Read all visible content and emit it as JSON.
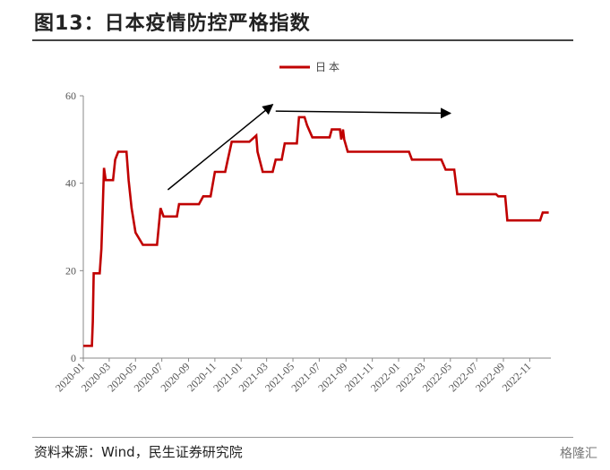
{
  "title": "图13：日本疫情防控严格指数",
  "source": "资料来源：Wind，民生证券研究院",
  "watermark": "格隆汇",
  "chart_data": {
    "type": "line",
    "series": [
      {
        "name": "日本",
        "color": "#c00000",
        "points": [
          [
            "2020-01-01",
            2.8
          ],
          [
            "2020-01-21",
            2.8
          ],
          [
            "2020-01-23",
            8.3
          ],
          [
            "2020-01-25",
            19.4
          ],
          [
            "2020-02-08",
            19.4
          ],
          [
            "2020-02-12",
            25.0
          ],
          [
            "2020-02-15",
            34.3
          ],
          [
            "2020-02-18",
            43.5
          ],
          [
            "2020-02-22",
            40.7
          ],
          [
            "2020-03-10",
            40.7
          ],
          [
            "2020-03-15",
            45.4
          ],
          [
            "2020-03-22",
            47.2
          ],
          [
            "2020-04-10",
            47.2
          ],
          [
            "2020-04-15",
            40.7
          ],
          [
            "2020-04-22",
            34.3
          ],
          [
            "2020-05-01",
            28.7
          ],
          [
            "2020-05-18",
            25.9
          ],
          [
            "2020-06-20",
            25.9
          ],
          [
            "2020-06-28",
            34.3
          ],
          [
            "2020-07-05",
            32.4
          ],
          [
            "2020-08-05",
            32.4
          ],
          [
            "2020-08-10",
            35.2
          ],
          [
            "2020-09-25",
            35.2
          ],
          [
            "2020-10-05",
            37.0
          ],
          [
            "2020-10-22",
            37.0
          ],
          [
            "2020-11-01",
            42.6
          ],
          [
            "2020-11-25",
            42.6
          ],
          [
            "2020-12-01",
            45.4
          ],
          [
            "2020-12-10",
            49.5
          ],
          [
            "2021-01-20",
            49.5
          ],
          [
            "2021-02-05",
            50.9
          ],
          [
            "2021-02-08",
            47.2
          ],
          [
            "2021-02-20",
            42.6
          ],
          [
            "2021-03-15",
            42.6
          ],
          [
            "2021-03-22",
            45.4
          ],
          [
            "2021-04-05",
            45.4
          ],
          [
            "2021-04-12",
            49.1
          ],
          [
            "2021-05-10",
            49.1
          ],
          [
            "2021-05-15",
            55.1
          ],
          [
            "2021-05-28",
            55.1
          ],
          [
            "2021-06-03",
            53.2
          ],
          [
            "2021-06-15",
            50.5
          ],
          [
            "2021-07-25",
            50.5
          ],
          [
            "2021-07-30",
            52.3
          ],
          [
            "2021-08-18",
            52.3
          ],
          [
            "2021-08-21",
            50.0
          ],
          [
            "2021-08-25",
            52.3
          ],
          [
            "2021-08-28",
            50.0
          ],
          [
            "2021-09-05",
            47.2
          ],
          [
            "2022-01-25",
            47.2
          ],
          [
            "2022-02-01",
            45.4
          ],
          [
            "2022-04-10",
            45.4
          ],
          [
            "2022-04-20",
            43.1
          ],
          [
            "2022-05-10",
            43.1
          ],
          [
            "2022-05-17",
            37.5
          ],
          [
            "2022-08-15",
            37.5
          ],
          [
            "2022-08-20",
            37.0
          ],
          [
            "2022-09-05",
            37.0
          ],
          [
            "2022-09-10",
            31.5
          ],
          [
            "2022-11-25",
            31.5
          ],
          [
            "2022-12-01",
            33.3
          ],
          [
            "2022-12-15",
            33.3
          ]
        ]
      }
    ],
    "ylim": [
      0,
      60
    ],
    "yticks": [
      0,
      20,
      40,
      60
    ],
    "xticks": [
      "2020-01",
      "2020-03",
      "2020-05",
      "2020-07",
      "2020-09",
      "2020-11",
      "2021-01",
      "2021-03",
      "2021-05",
      "2021-07",
      "2021-09",
      "2021-11",
      "2022-01",
      "2022-03",
      "2022-05",
      "2022-07",
      "2022-09",
      "2022-11"
    ],
    "xlim": [
      "2020-01-01",
      "2022-12-20"
    ],
    "grid": false,
    "legend_position": "top-center",
    "arrows": [
      {
        "from": [
          "2020-07-15",
          38.5
        ],
        "to": [
          "2021-03-15",
          58.0
        ]
      },
      {
        "from": [
          "2021-03-22",
          56.5
        ],
        "to": [
          "2022-05-01",
          56.0
        ]
      }
    ]
  }
}
